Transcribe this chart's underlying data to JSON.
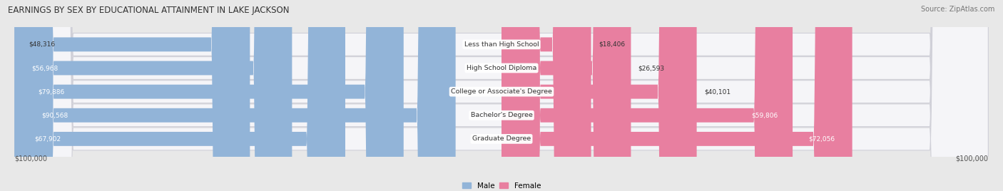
{
  "title": "EARNINGS BY SEX BY EDUCATIONAL ATTAINMENT IN LAKE JACKSON",
  "source": "Source: ZipAtlas.com",
  "categories": [
    "Less than High School",
    "High School Diploma",
    "College or Associate's Degree",
    "Bachelor's Degree",
    "Graduate Degree"
  ],
  "male_values": [
    48316,
    56968,
    79886,
    90568,
    67902
  ],
  "female_values": [
    18406,
    26593,
    40101,
    59806,
    72056
  ],
  "max_value": 100000,
  "male_color": "#92b4d8",
  "female_color": "#e87fa0",
  "bg_color": "#e8e8e8",
  "row_bg_color": "#f5f5f8",
  "row_border_color": "#d0d0d8",
  "xlabel_left": "$100,000",
  "xlabel_right": "$100,000",
  "legend_male": "Male",
  "legend_female": "Female"
}
